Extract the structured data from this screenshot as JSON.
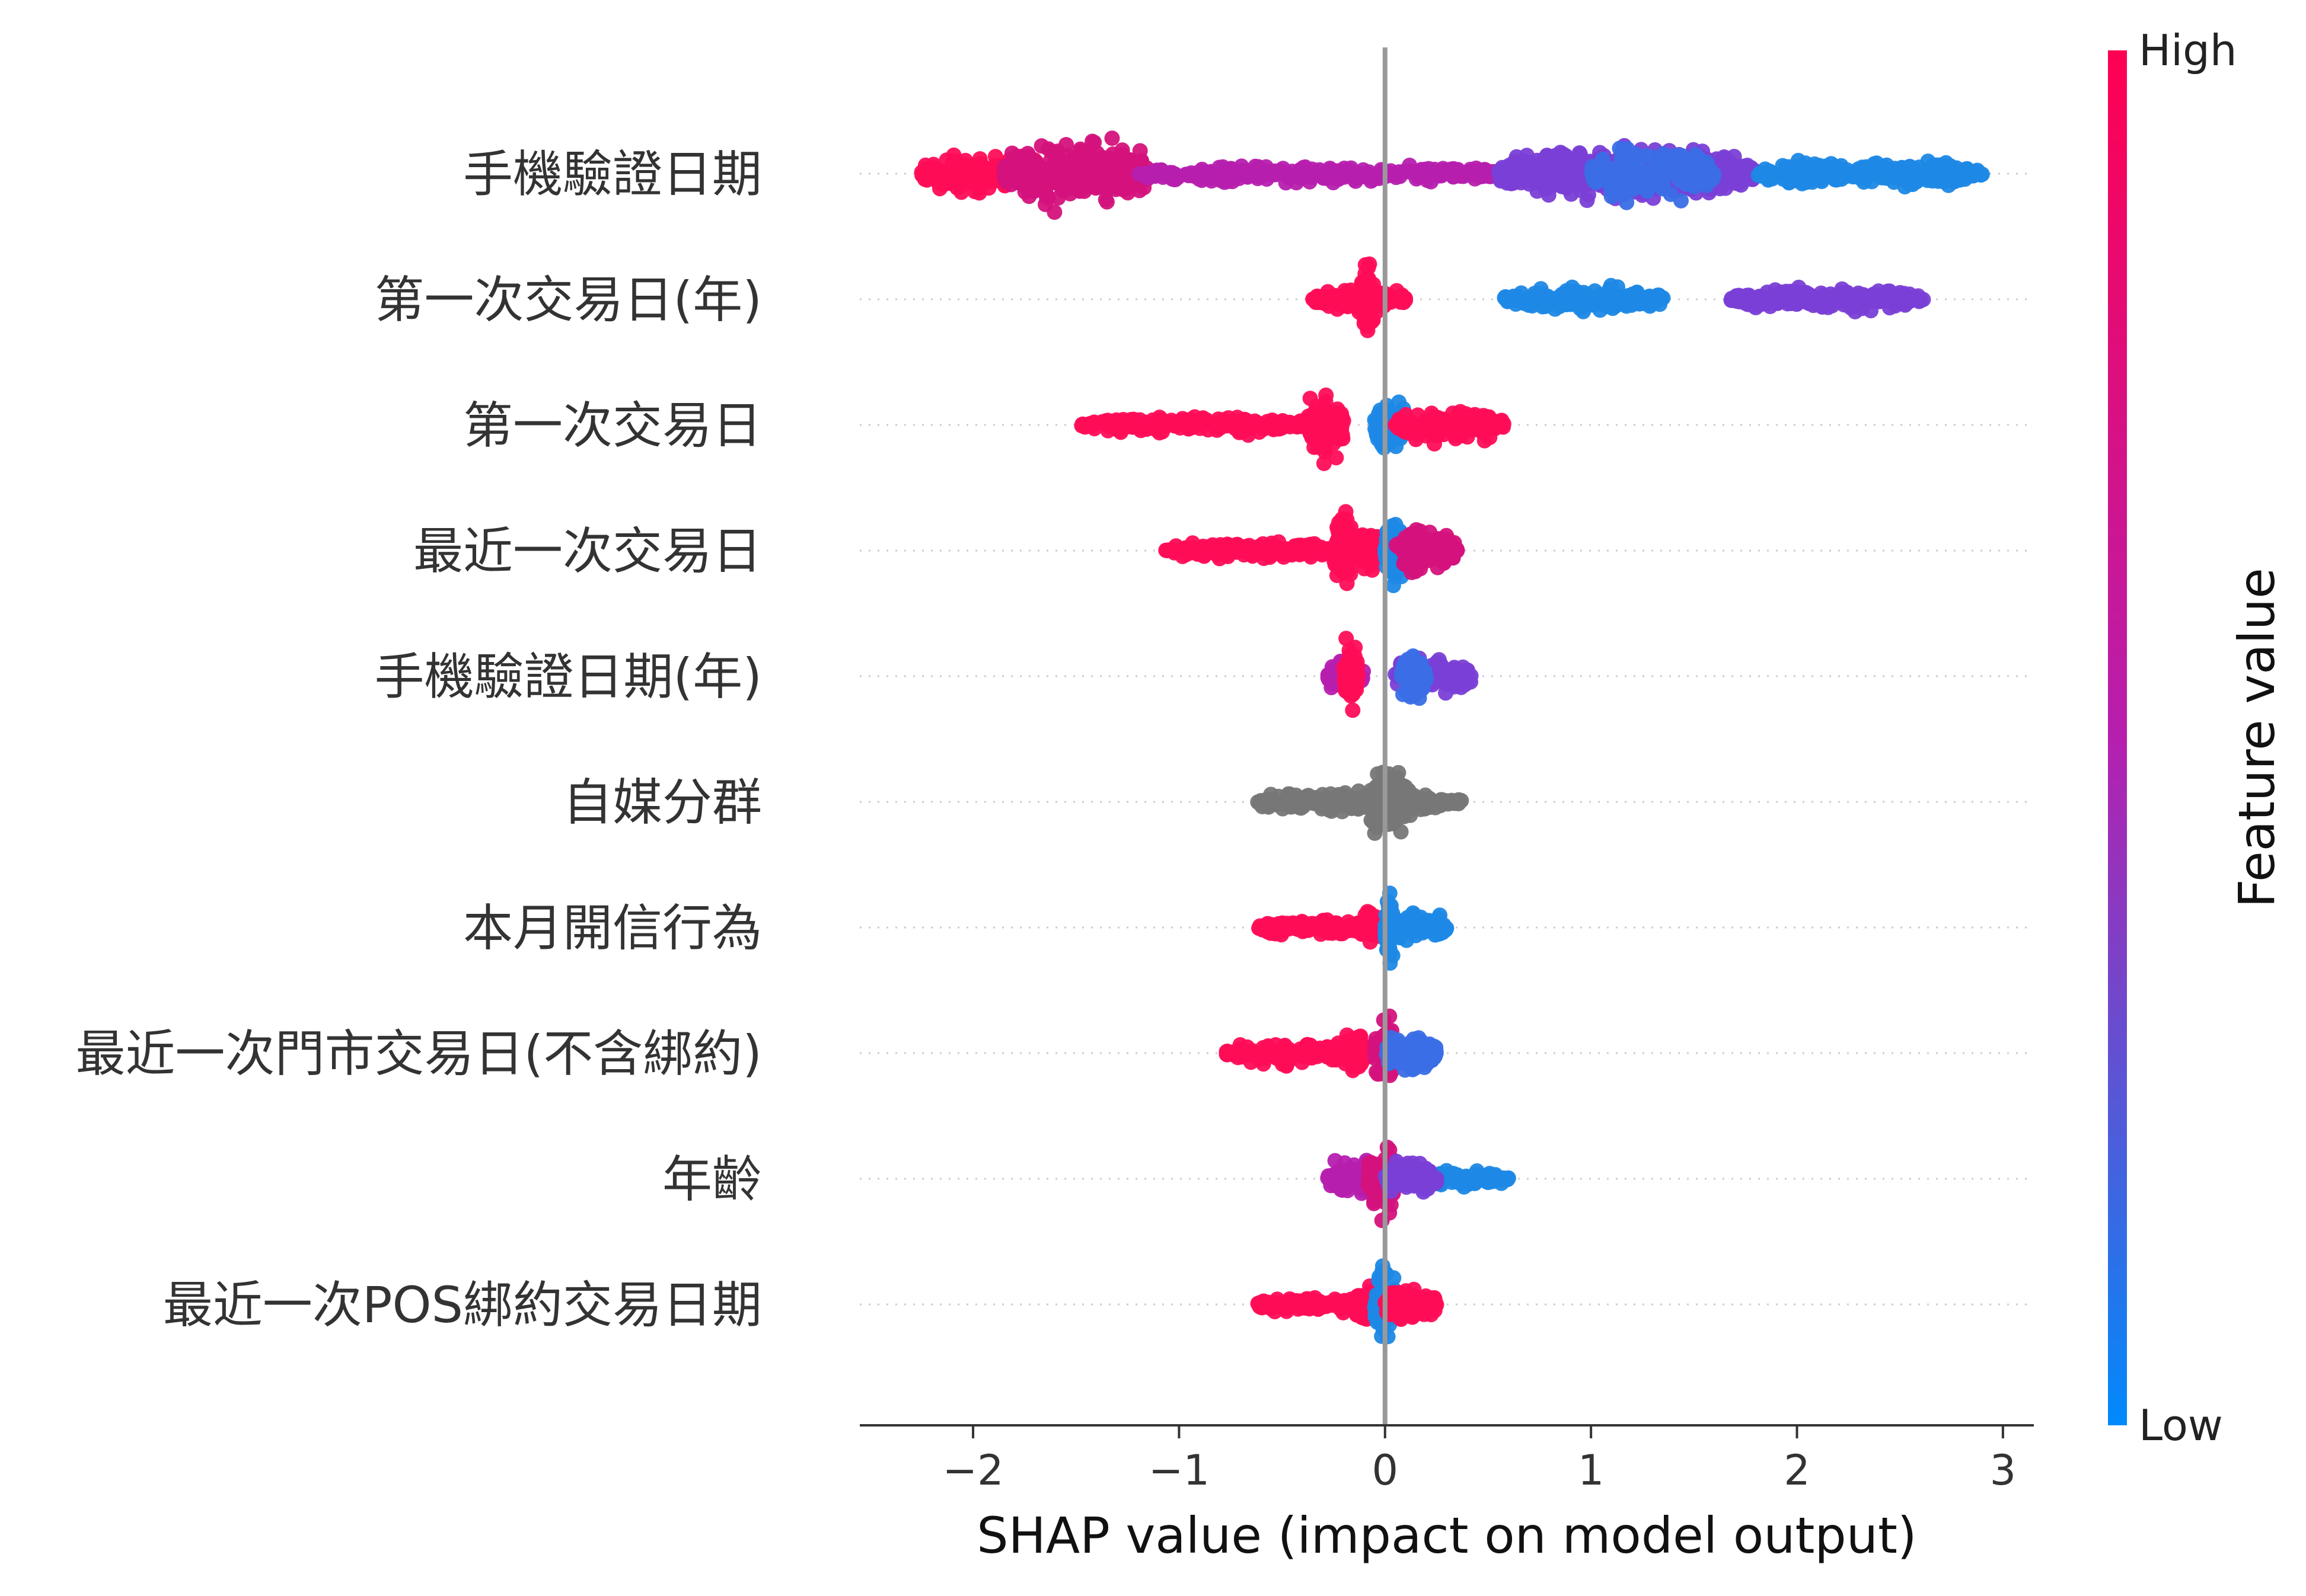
{
  "chart_data": {
    "type": "scatter",
    "subtype": "shap-beeswarm",
    "xlabel": "SHAP value (impact on model output)",
    "xlim": [
      -2.55,
      3.15
    ],
    "xticks": [
      -2,
      -1,
      0,
      1,
      2,
      3
    ],
    "xtick_labels": [
      "−2",
      "−1",
      "0",
      "1",
      "2",
      "3"
    ],
    "colorbar": {
      "label": "Feature value",
      "high_label": "High",
      "low_label": "Low",
      "high_color": "#ff0d57",
      "mid_color": "#b61fae",
      "low_color": "#1e88e5"
    },
    "no_value_color": "#777777",
    "features": [
      {
        "name": "手機驗證日期",
        "clusters": [
          {
            "min": -2.25,
            "max": -1.65,
            "width": 0.45,
            "color": "#ff0d57"
          },
          {
            "min": -1.85,
            "max": -1.15,
            "width": 0.8,
            "color": "#d4127c"
          },
          {
            "min": -1.2,
            "max": 0.6,
            "width": 0.2,
            "color": "#b61fae"
          },
          {
            "min": 0.55,
            "max": 1.8,
            "width": 0.65,
            "color": "#7a3fd6"
          },
          {
            "min": 1.0,
            "max": 1.6,
            "width": 0.55,
            "color": "#3a6ee6"
          },
          {
            "min": 1.8,
            "max": 2.9,
            "width": 0.3,
            "color": "#1e88e5"
          }
        ]
      },
      {
        "name": "第一次交易日(年)",
        "clusters": [
          {
            "min": -0.35,
            "max": 0.1,
            "width": 0.25,
            "color": "#ff0d57"
          },
          {
            "min": -0.12,
            "max": -0.05,
            "width": 0.85,
            "color": "#ff0d57"
          },
          {
            "min": 0.58,
            "max": 1.35,
            "width": 0.3,
            "color": "#1e88e5"
          },
          {
            "min": 1.68,
            "max": 2.62,
            "width": 0.25,
            "color": "#7a3fd6"
          }
        ]
      },
      {
        "name": "第一次交易日",
        "clusters": [
          {
            "min": -1.48,
            "max": -0.35,
            "width": 0.2,
            "color": "#ff0d57"
          },
          {
            "min": -0.38,
            "max": -0.2,
            "width": 0.85,
            "color": "#ff0d57"
          },
          {
            "min": -0.05,
            "max": 0.1,
            "width": 0.6,
            "color": "#1e88e5"
          },
          {
            "min": 0.05,
            "max": 0.58,
            "width": 0.35,
            "color": "#ff0d57"
          }
        ]
      },
      {
        "name": "最近一次交易日",
        "clusters": [
          {
            "min": -1.08,
            "max": -0.25,
            "width": 0.2,
            "color": "#ff0d57"
          },
          {
            "min": -0.25,
            "max": -0.15,
            "width": 0.8,
            "color": "#ff0d57"
          },
          {
            "min": -0.15,
            "max": 0.0,
            "width": 0.5,
            "color": "#ff0d57"
          },
          {
            "min": 0.0,
            "max": 0.1,
            "width": 0.8,
            "color": "#1e88e5"
          },
          {
            "min": 0.05,
            "max": 0.35,
            "width": 0.5,
            "color": "#d4127c"
          }
        ]
      },
      {
        "name": "手機驗證日期(年)",
        "clusters": [
          {
            "min": -0.28,
            "max": -0.1,
            "width": 0.4,
            "color": "#b61fae"
          },
          {
            "min": -0.2,
            "max": -0.13,
            "width": 0.85,
            "color": "#ff0d57"
          },
          {
            "min": 0.05,
            "max": 0.42,
            "width": 0.45,
            "color": "#7a3fd6"
          },
          {
            "min": 0.08,
            "max": 0.2,
            "width": 0.55,
            "color": "#3a6ee6"
          }
        ]
      },
      {
        "name": "自媒分群",
        "clusters": [
          {
            "min": -0.62,
            "max": 0.38,
            "width": 0.25,
            "color": "#777777"
          },
          {
            "min": -0.08,
            "max": 0.12,
            "width": 0.85,
            "color": "#777777"
          }
        ]
      },
      {
        "name": "本月開信行為",
        "clusters": [
          {
            "min": -0.62,
            "max": -0.05,
            "width": 0.2,
            "color": "#ff0d57"
          },
          {
            "min": -0.12,
            "max": -0.02,
            "width": 0.35,
            "color": "#ff0d57"
          },
          {
            "min": 0.0,
            "max": 0.05,
            "width": 0.85,
            "color": "#1e88e5"
          },
          {
            "min": 0.0,
            "max": 0.3,
            "width": 0.35,
            "color": "#1e88e5"
          }
        ]
      },
      {
        "name": "最近一次門市交易日(不含綁約)",
        "clusters": [
          {
            "min": -0.77,
            "max": -0.05,
            "width": 0.25,
            "color": "#ff0d57"
          },
          {
            "min": -0.2,
            "max": -0.1,
            "width": 0.55,
            "color": "#ff0d57"
          },
          {
            "min": -0.05,
            "max": 0.05,
            "width": 0.85,
            "color": "#d4127c"
          },
          {
            "min": 0.0,
            "max": 0.25,
            "width": 0.45,
            "color": "#3a6ee6"
          }
        ]
      },
      {
        "name": "年齡",
        "clusters": [
          {
            "min": -0.28,
            "max": 0.0,
            "width": 0.45,
            "color": "#b61fae"
          },
          {
            "min": -0.08,
            "max": 0.05,
            "width": 0.85,
            "color": "#d4127c"
          },
          {
            "min": 0.0,
            "max": 0.6,
            "width": 0.2,
            "color": "#1e88e5"
          },
          {
            "min": 0.0,
            "max": 0.25,
            "width": 0.4,
            "color": "#7a3fd6"
          }
        ]
      },
      {
        "name": "最近一次POS綁約交易日期",
        "clusters": [
          {
            "min": -0.62,
            "max": -0.05,
            "width": 0.2,
            "color": "#ff0d57"
          },
          {
            "min": -0.15,
            "max": -0.05,
            "width": 0.45,
            "color": "#ff0d57"
          },
          {
            "min": -0.05,
            "max": 0.05,
            "width": 0.85,
            "color": "#1e88e5"
          },
          {
            "min": 0.0,
            "max": 0.25,
            "width": 0.45,
            "color": "#ff0d57"
          }
        ]
      }
    ]
  }
}
